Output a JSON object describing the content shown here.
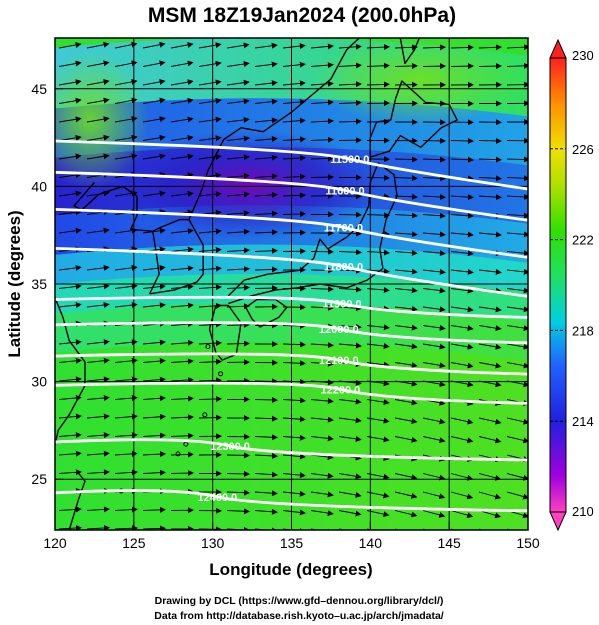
{
  "title": "MSM 18Z19Jan2024 (200.0hPa)",
  "x_axis": {
    "label": "Longitude (degrees)",
    "range": [
      120,
      150
    ],
    "ticks": [
      "120",
      "125",
      "130",
      "135",
      "140",
      "145",
      "150"
    ]
  },
  "y_axis": {
    "label": "Latitude  (degrees)",
    "range": [
      22.4,
      47.6
    ],
    "ticks": [
      "25",
      "30",
      "35",
      "40",
      "45"
    ]
  },
  "colorbar": {
    "range": [
      210,
      230
    ],
    "ticks": [
      "210",
      "214",
      "218",
      "222",
      "226",
      "230"
    ]
  },
  "contours": [
    {
      "label": "11500.0",
      "lon": 138.7,
      "lat": 41.4
    },
    {
      "label": "11600.0",
      "lon": 138.4,
      "lat": 39.8
    },
    {
      "label": "11700.0",
      "lon": 138.3,
      "lat": 37.9
    },
    {
      "label": "11800.0",
      "lon": 138.3,
      "lat": 35.9
    },
    {
      "label": "11900.0",
      "lon": 138.2,
      "lat": 34.0
    },
    {
      "label": "12000.0",
      "lon": 138.0,
      "lat": 32.7
    },
    {
      "label": "12100.0",
      "lon": 138.0,
      "lat": 31.1
    },
    {
      "label": "12200.0",
      "lon": 138.1,
      "lat": 29.6
    },
    {
      "label": "12300.0",
      "lon": 131.1,
      "lat": 26.7
    },
    {
      "label": "12400.0",
      "lon": 130.3,
      "lat": 24.1
    }
  ],
  "credits": [
    "Drawing by DCL (https://www.gfd–dennou.org/library/dcl/)",
    "Data from http://database.rish.kyoto–u.ac.jp/arch/jmadata/"
  ],
  "colors": {
    "low": "#c000c0",
    "mid_low": "#2020e0",
    "mid": "#20e0e0",
    "mid_high": "#20e020",
    "high": "#e0e020",
    "top": "#e03020"
  }
}
